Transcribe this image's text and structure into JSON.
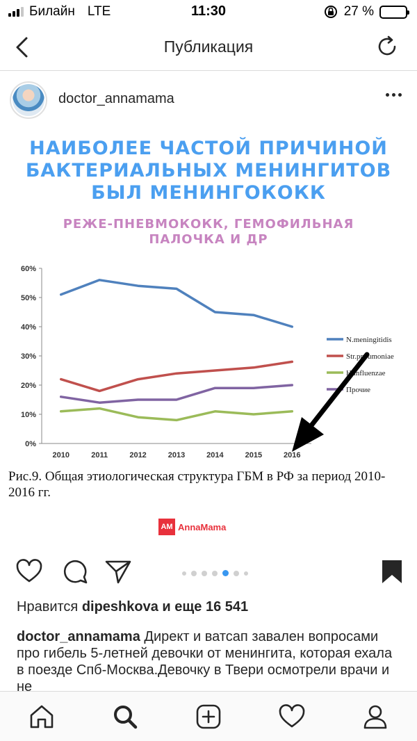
{
  "status": {
    "carrier": "Билайн",
    "network": "LTE",
    "time": "11:30",
    "battery": "27 %",
    "battery_level": 0.27
  },
  "nav": {
    "title": "Публикация"
  },
  "post": {
    "username": "doctor_annamama",
    "likes_prefix": "Нравится ",
    "likes_user": "dipeshkova",
    "likes_suffix": " и еще 16 541",
    "caption_user": "doctor_annamama",
    "caption_text": " Директ и ватсап завален вопросами про гибель 5-летней девочки от менингита, которая ехала в поезде Спб-Москва.Девочку в Твери осмотрели врачи и не"
  },
  "image": {
    "headline_lines": [
      "НАИБОЛЕЕ ЧАСТОЙ ПРИЧИНОЙ",
      "БАКТЕРИАЛЬНЫХ МЕНИНГИТОВ",
      "БЫЛ МЕНИНГОКОКК"
    ],
    "subhead_lines": [
      "РЕЖЕ-ПНЕВМОКОКК, ГЕМОФИЛЬНАЯ",
      "ПАЛОЧКА И ДР"
    ],
    "figure_caption": "Рис.9. Общая этиологическая структура ГБМ в РФ за период 2010-2016 гг.",
    "brand_badge": "AM",
    "brand_name": "AnnaMama"
  },
  "colors": {
    "headline": "#4b9ff0",
    "subhead": "#c784c0",
    "accent": "#3897f0",
    "brand": "#e8313c"
  },
  "chart_data": {
    "type": "line",
    "categories": [
      "2010",
      "2011",
      "2012",
      "2013",
      "2014",
      "2015",
      "2016"
    ],
    "series": [
      {
        "name": "N.meningitidis",
        "color": "#4f81bd",
        "values": [
          51,
          56,
          54,
          53,
          45,
          44,
          40
        ]
      },
      {
        "name": "Str.pneumoniae",
        "color": "#c0504d",
        "values": [
          22,
          18,
          22,
          24,
          25,
          26,
          28
        ]
      },
      {
        "name": "H.influenzae",
        "color": "#9bbb59",
        "values": [
          11,
          12,
          9,
          8,
          11,
          10,
          11
        ]
      },
      {
        "name": "Прочие",
        "color": "#8064a2",
        "values": [
          16,
          14,
          15,
          15,
          19,
          19,
          20
        ]
      }
    ],
    "ylim": [
      0,
      60
    ],
    "yticks": [
      "0%",
      "10%",
      "20%",
      "30%",
      "40%",
      "50%",
      "60%"
    ],
    "annotation": "arrow pointing to N.meningitidis 2016",
    "grid": false,
    "legend": "right"
  }
}
